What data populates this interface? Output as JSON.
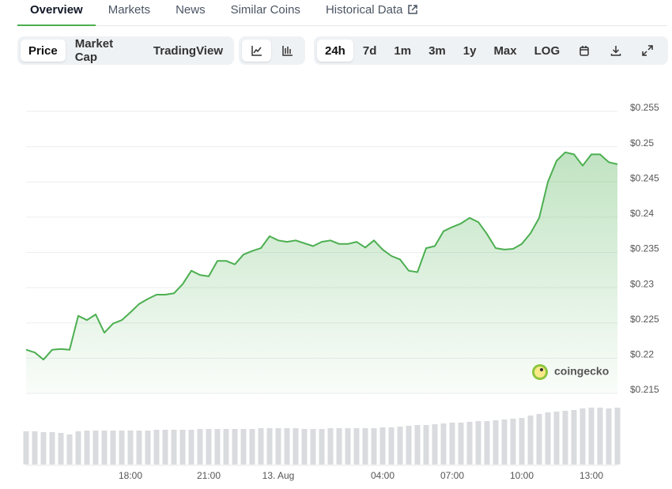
{
  "tabs": [
    {
      "label": "Overview",
      "active": true
    },
    {
      "label": "Markets"
    },
    {
      "label": "News"
    },
    {
      "label": "Similar Coins"
    },
    {
      "label": "Historical Data",
      "external": true
    }
  ],
  "chart_modes": [
    {
      "label": "Price",
      "active": true
    },
    {
      "label": "Market Cap"
    },
    {
      "label": "TradingView"
    }
  ],
  "ranges": [
    {
      "label": "24h",
      "active": true
    },
    {
      "label": "7d"
    },
    {
      "label": "1m"
    },
    {
      "label": "3m"
    },
    {
      "label": "1y"
    },
    {
      "label": "Max"
    },
    {
      "label": "LOG"
    }
  ],
  "watermark": "coingecko",
  "chart_data": {
    "type": "line",
    "color": "#4caf50",
    "grid": true,
    "categories": [
      null,
      null,
      null,
      null,
      null,
      null,
      null,
      null,
      null,
      null,
      null,
      null,
      "18:00",
      null,
      null,
      null,
      null,
      null,
      null,
      null,
      null,
      "21:00",
      null,
      null,
      null,
      null,
      null,
      null,
      null,
      "13. Aug",
      null,
      null,
      null,
      null,
      null,
      null,
      null,
      null,
      null,
      null,
      null,
      "04:00",
      null,
      null,
      null,
      null,
      null,
      null,
      null,
      "07:00",
      null,
      null,
      null,
      null,
      null,
      null,
      null,
      "10:00",
      null,
      null,
      null,
      null,
      null,
      null,
      null,
      "13:00",
      null,
      null,
      null
    ],
    "values": [
      0.2212,
      0.2208,
      0.2198,
      0.2212,
      0.2213,
      0.2212,
      0.226,
      0.2254,
      0.2262,
      0.2236,
      0.2249,
      0.2254,
      0.2265,
      0.2277,
      0.2284,
      0.229,
      0.229,
      0.2292,
      0.2305,
      0.2324,
      0.2318,
      0.2316,
      0.2338,
      0.2338,
      0.2333,
      0.2347,
      0.2352,
      0.2356,
      0.2373,
      0.2367,
      0.2365,
      0.2367,
      0.2363,
      0.2359,
      0.2365,
      0.2367,
      0.2362,
      0.2362,
      0.2365,
      0.2357,
      0.2367,
      0.2354,
      0.2345,
      0.234,
      0.2324,
      0.2322,
      0.2356,
      0.2359,
      0.238,
      0.2386,
      0.2391,
      0.2399,
      0.2393,
      0.2376,
      0.2356,
      0.2354,
      0.2355,
      0.2362,
      0.2377,
      0.2399,
      0.245,
      0.248,
      0.2492,
      0.2489,
      0.2473,
      0.2489,
      0.2489,
      0.2478,
      0.2475
    ],
    "ylim": [
      0.215,
      0.255
    ],
    "yticks": [
      {
        "value": 0.215,
        "label": "$0.215"
      },
      {
        "value": 0.22,
        "label": "$0.22"
      },
      {
        "value": 0.225,
        "label": "$0.225"
      },
      {
        "value": 0.23,
        "label": "$0.23"
      },
      {
        "value": 0.235,
        "label": "$0.235"
      },
      {
        "value": 0.24,
        "label": "$0.24"
      },
      {
        "value": 0.245,
        "label": "$0.245"
      },
      {
        "value": 0.25,
        "label": "$0.25"
      },
      {
        "value": 0.255,
        "label": "$0.255"
      }
    ],
    "volume": {
      "color": "#d9dbde",
      "ylim": [
        0,
        100
      ],
      "values": [
        42,
        42,
        41,
        41,
        40,
        38,
        42,
        43,
        43,
        43,
        43,
        43,
        43,
        43,
        43,
        44,
        44,
        44,
        44,
        44,
        45,
        45,
        45,
        45,
        45,
        45,
        45,
        46,
        46,
        46,
        46,
        46,
        45,
        45,
        45,
        46,
        46,
        46,
        46,
        46,
        46,
        47,
        47,
        48,
        49,
        50,
        50,
        51,
        52,
        53,
        53,
        54,
        55,
        55,
        56,
        57,
        58,
        59,
        62,
        64,
        66,
        67,
        68,
        69,
        71,
        72,
        72,
        71,
        72
      ]
    }
  }
}
